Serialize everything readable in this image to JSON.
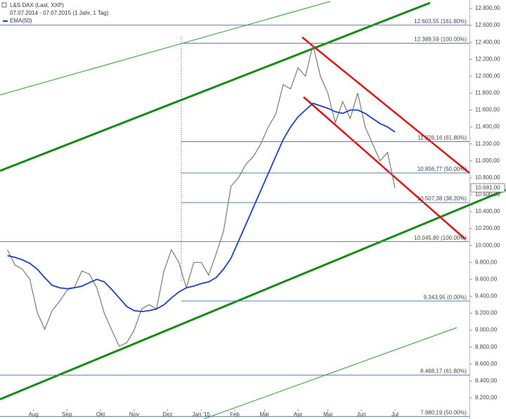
{
  "chart_data": {
    "type": "line",
    "title": "L&S DAX (Last, XXP)",
    "subtitle": "07.07.2014 - 07.07.2015 (1 Jahr, 1 Tag)",
    "series": [
      {
        "name": "L&S DAX",
        "color": "#7a7a7a",
        "values": [
          9950,
          9770,
          9720,
          9600,
          9210,
          9010,
          9230,
          9340,
          9470,
          9510,
          9700,
          9660,
          9500,
          9200,
          9000,
          8810,
          8850,
          9000,
          9250,
          9300,
          9250,
          9700,
          9950,
          9800,
          9500,
          9800,
          9800,
          9650,
          9900,
          10170,
          10700,
          10800,
          10960,
          11050,
          11200,
          11400,
          11550,
          11900,
          11850,
          12100,
          12000,
          12370,
          12000,
          11800,
          11450,
          11700,
          11500,
          11800,
          11400,
          11200,
          11000,
          11100,
          10681
        ]
      },
      {
        "name": "EMA(50)",
        "color": "#1f3fbf",
        "values": [
          9880,
          9860,
          9830,
          9790,
          9720,
          9620,
          9530,
          9500,
          9490,
          9500,
          9520,
          9560,
          9600,
          9570,
          9480,
          9380,
          9280,
          9230,
          9220,
          9230,
          9250,
          9300,
          9380,
          9450,
          9500,
          9520,
          9550,
          9570,
          9620,
          9720,
          9850,
          10050,
          10250,
          10450,
          10650,
          10850,
          11050,
          11250,
          11400,
          11520,
          11600,
          11680,
          11650,
          11620,
          11580,
          11560,
          11600,
          11600,
          11560,
          11500,
          11440,
          11400,
          11340
        ]
      }
    ],
    "last_price": {
      "value": 10681,
      "label": "10.681,00"
    },
    "xlim": [
      -1,
      62
    ],
    "xticks": [
      {
        "value": 3.5,
        "label": "Aug"
      },
      {
        "value": 8,
        "label": "Sep"
      },
      {
        "value": 12.5,
        "label": "Okt"
      },
      {
        "value": 17,
        "label": "Nov"
      },
      {
        "value": 21.5,
        "label": "Dez"
      },
      {
        "value": 26,
        "label": "Jan '15"
      },
      {
        "value": 30.5,
        "label": "Feb"
      },
      {
        "value": 34.5,
        "label": "Mär"
      },
      {
        "value": 39,
        "label": "Apr"
      },
      {
        "value": 43,
        "label": "Mai"
      },
      {
        "value": 47.5,
        "label": "Jun"
      },
      {
        "value": 52,
        "label": "Jul"
      }
    ],
    "ylim": [
      7950,
      12900
    ],
    "yticks": [
      {
        "value": 8200,
        "label": "8.200,00"
      },
      {
        "value": 8400,
        "label": "8.400,00"
      },
      {
        "value": 8600,
        "label": "8.600,00"
      },
      {
        "value": 8800,
        "label": "8.800,00"
      },
      {
        "value": 9000,
        "label": "9.000,00"
      },
      {
        "value": 9200,
        "label": "9.200,00"
      },
      {
        "value": 9400,
        "label": "9.400,00"
      },
      {
        "value": 9600,
        "label": "9.600,00"
      },
      {
        "value": 9800,
        "label": "9.800,00"
      },
      {
        "value": 10000,
        "label": "10.000,00"
      },
      {
        "value": 10200,
        "label": "10.200,00"
      },
      {
        "value": 10400,
        "label": "10.400,00"
      },
      {
        "value": 10600,
        "label": "10.600,00"
      },
      {
        "value": 10800,
        "label": "10.800,00"
      },
      {
        "value": 11000,
        "label": "11.000,00"
      },
      {
        "value": 11200,
        "label": "11.200,00"
      },
      {
        "value": 11400,
        "label": "11.400,00"
      },
      {
        "value": 11600,
        "label": "11.600,00"
      },
      {
        "value": 11800,
        "label": "11.800,00"
      },
      {
        "value": 12000,
        "label": "12.000,00"
      },
      {
        "value": 12200,
        "label": "12.200,00"
      },
      {
        "value": 12400,
        "label": "12.400,00"
      },
      {
        "value": 12600,
        "label": "12.600,00"
      },
      {
        "value": 12800,
        "label": "12.800,00"
      }
    ],
    "levels": [
      {
        "value": 12603.55,
        "label": "12.603,55 (161.80%)",
        "full": true
      },
      {
        "value": 12389.59,
        "label": "12.389,59 (100.00%)",
        "full": false
      },
      {
        "value": 11226.16,
        "label": "11.226,16 (61.80%)",
        "full": false
      },
      {
        "value": 10856.77,
        "label": "10.856,77 (50.00%)",
        "full": false
      },
      {
        "value": 10507.38,
        "label": "10.507,38 (38.20%)",
        "full": false
      },
      {
        "value": 10045.8,
        "label": "10.045,80 (100.00%)",
        "full": true
      },
      {
        "value": 9343.95,
        "label": "9.343,95 (0.00%)",
        "full": false
      },
      {
        "value": 8468.17,
        "label": "8.468,17 (61.80%)",
        "full": true
      },
      {
        "value": 7980.19,
        "label": "7.980,19 (50.00%)",
        "full": true
      }
    ],
    "level_color": "#5b7fb0"
  }
}
